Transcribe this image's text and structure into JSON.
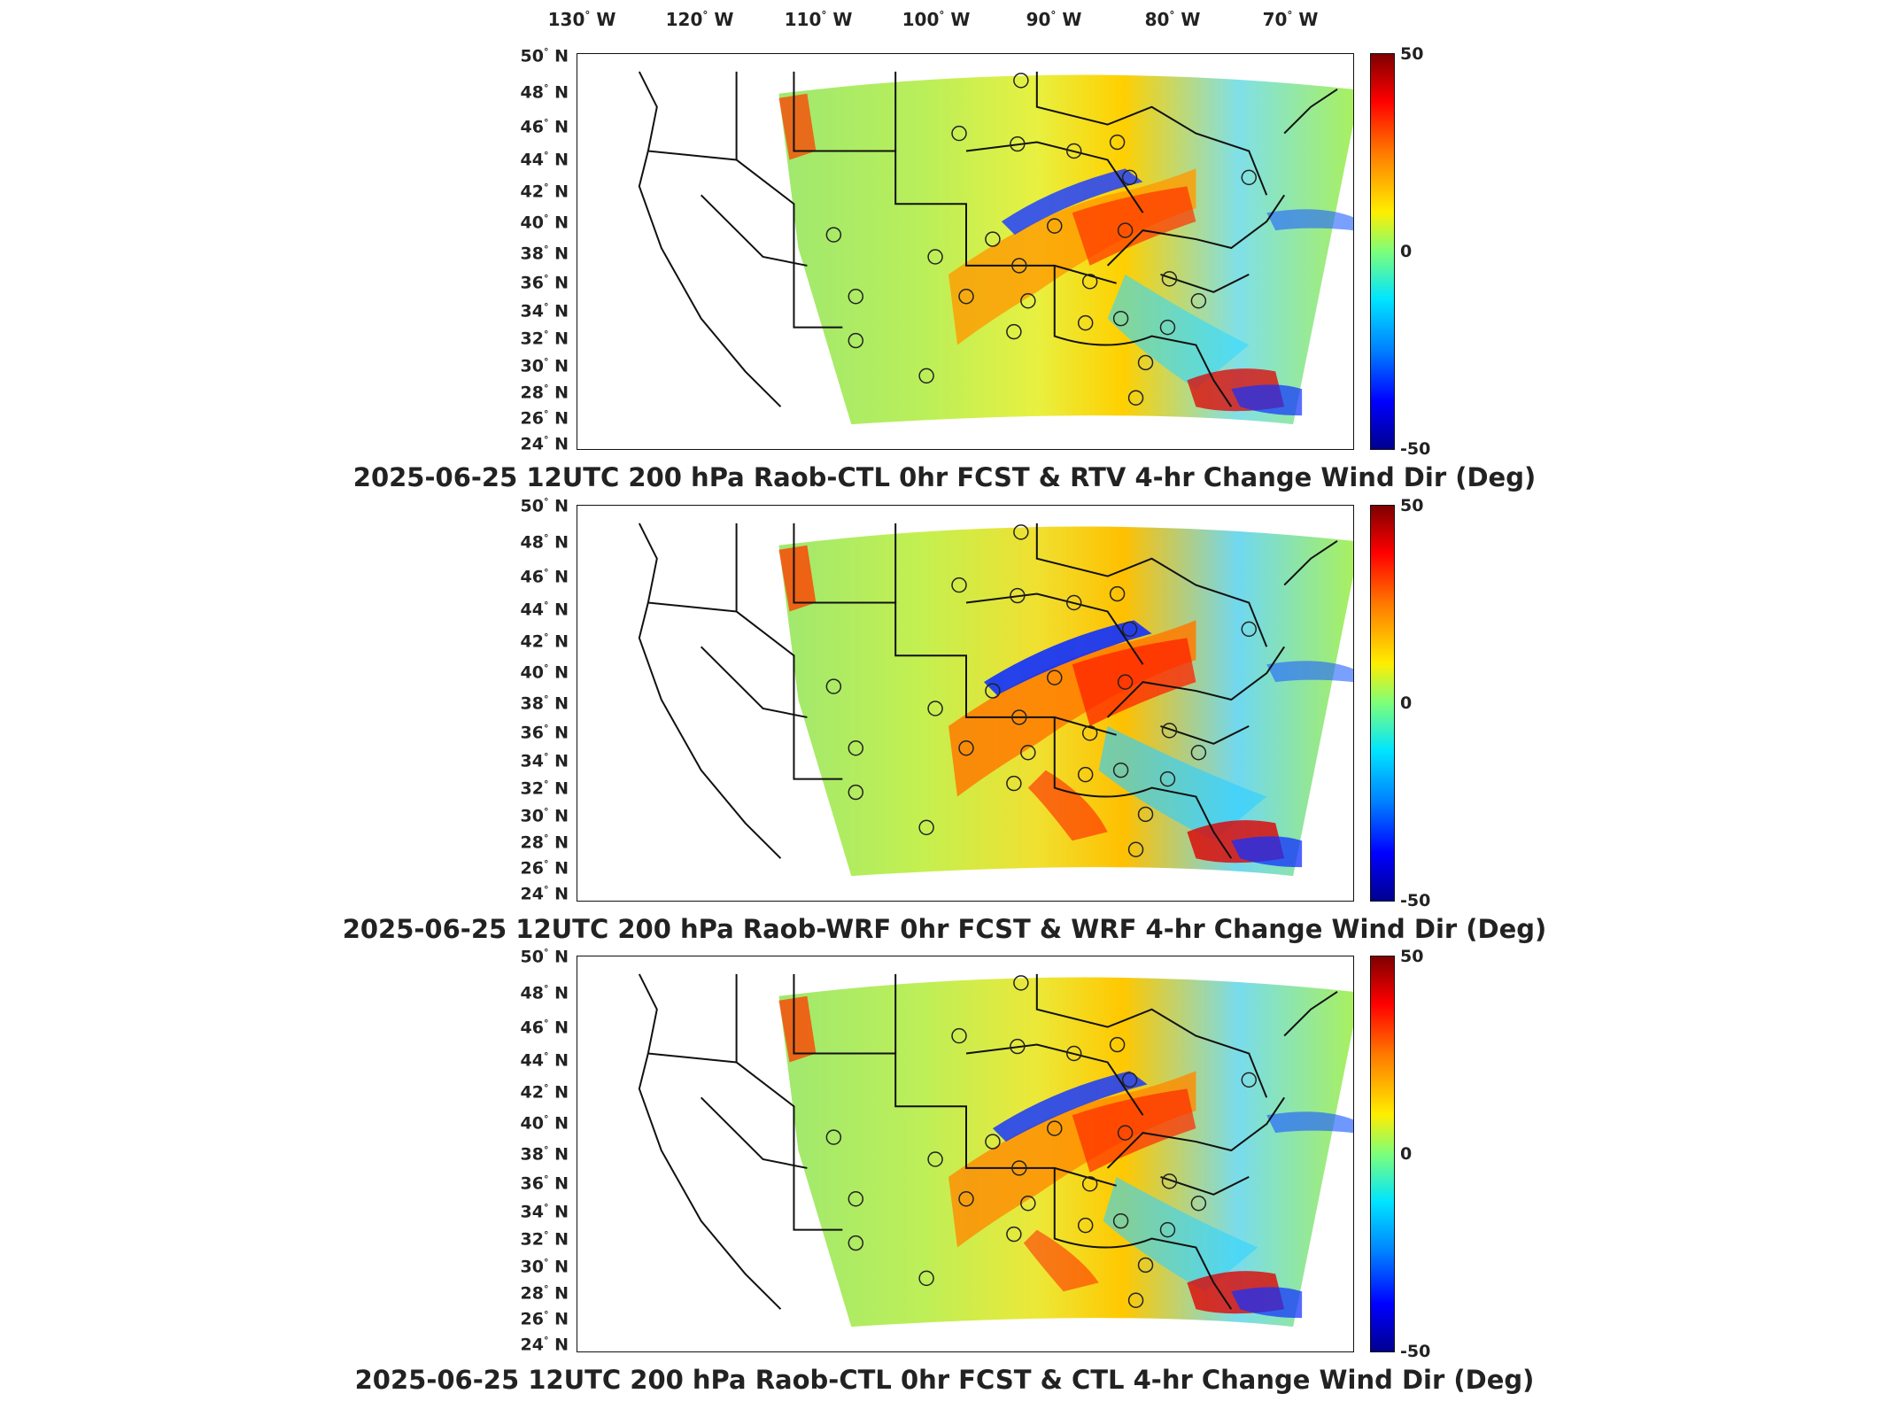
{
  "lon_labels": [
    {
      "deg": "130",
      "dir": "W"
    },
    {
      "deg": "120",
      "dir": "W"
    },
    {
      "deg": "110",
      "dir": "W"
    },
    {
      "deg": "100",
      "dir": "W"
    },
    {
      "deg": "90",
      "dir": "W"
    },
    {
      "deg": "80",
      "dir": "W"
    },
    {
      "deg": "70",
      "dir": "W"
    }
  ],
  "lat_labels": [
    {
      "deg": "50",
      "dir": "N"
    },
    {
      "deg": "48",
      "dir": "N"
    },
    {
      "deg": "46",
      "dir": "N"
    },
    {
      "deg": "44",
      "dir": "N"
    },
    {
      "deg": "42",
      "dir": "N"
    },
    {
      "deg": "40",
      "dir": "N"
    },
    {
      "deg": "38",
      "dir": "N"
    },
    {
      "deg": "36",
      "dir": "N"
    },
    {
      "deg": "34",
      "dir": "N"
    },
    {
      "deg": "32",
      "dir": "N"
    },
    {
      "deg": "30",
      "dir": "N"
    },
    {
      "deg": "28",
      "dir": "N"
    },
    {
      "deg": "26",
      "dir": "N"
    },
    {
      "deg": "24",
      "dir": "N"
    }
  ],
  "colorbar": {
    "max": "50",
    "mid": "0",
    "min": "-50"
  },
  "panels": [
    {
      "title": "2025-06-25 12UTC 200 hPa Raob-CTL 0hr FCST & RTV 4-hr Change Wind Dir (Deg)"
    },
    {
      "title": "2025-06-25 12UTC 200 hPa Raob-WRF 0hr FCST & WRF 4-hr Change Wind Dir (Deg)"
    },
    {
      "title": "2025-06-25 12UTC 200 hPa Raob-CTL 0hr FCST & CTL 4-hr Change Wind Dir (Deg)"
    }
  ]
}
